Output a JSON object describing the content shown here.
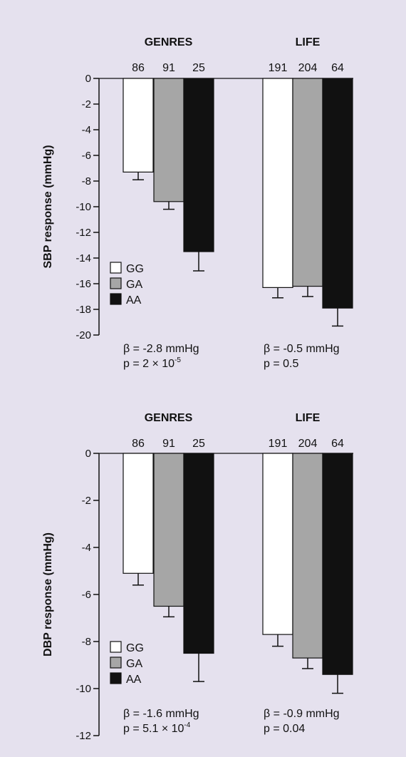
{
  "chart_data": [
    {
      "type": "bar",
      "ylabel": "SBP response (mmHg)",
      "ylim": [
        -20,
        0
      ],
      "yticks": [
        0,
        -2,
        -4,
        -6,
        -8,
        -10,
        -12,
        -14,
        -16,
        -18,
        -20
      ],
      "legend": {
        "placement": "bottom-left",
        "entries": [
          "GG",
          "GA",
          "AA"
        ]
      },
      "series_colors": [
        "#ffffff",
        "#a6a6a6",
        "#111111"
      ],
      "groups": [
        {
          "title": "GENRES",
          "counts": [
            "86",
            "91",
            "25"
          ],
          "values": [
            -7.3,
            -9.6,
            -13.5
          ],
          "errors": [
            0.6,
            0.6,
            1.5
          ],
          "stat_beta": "β = -2.8 mmHg",
          "stat_p_prefix": "p = 2 × 10",
          "stat_p_exp": "-5"
        },
        {
          "title": "LIFE",
          "counts": [
            "191",
            "204",
            "64"
          ],
          "values": [
            -16.3,
            -16.2,
            -17.9
          ],
          "errors": [
            0.8,
            0.8,
            1.4
          ],
          "stat_beta": "β = -0.5 mmHg",
          "stat_p_prefix": "p = 0.5",
          "stat_p_exp": ""
        }
      ]
    },
    {
      "type": "bar",
      "ylabel": "DBP response (mmHg)",
      "ylim": [
        -12,
        0
      ],
      "yticks": [
        0,
        -2,
        -4,
        -6,
        -8,
        -10,
        -12
      ],
      "legend": {
        "placement": "bottom-left",
        "entries": [
          "GG",
          "GA",
          "AA"
        ]
      },
      "series_colors": [
        "#ffffff",
        "#a6a6a6",
        "#111111"
      ],
      "groups": [
        {
          "title": "GENRES",
          "counts": [
            "86",
            "91",
            "25"
          ],
          "values": [
            -5.1,
            -6.5,
            -8.5
          ],
          "errors": [
            0.5,
            0.45,
            1.2
          ],
          "stat_beta": "β = -1.6 mmHg",
          "stat_p_prefix": "p = 5.1 × 10",
          "stat_p_exp": "-4"
        },
        {
          "title": "LIFE",
          "counts": [
            "191",
            "204",
            "64"
          ],
          "values": [
            -7.7,
            -8.7,
            -9.4
          ],
          "errors": [
            0.5,
            0.45,
            0.8
          ],
          "stat_beta": "β = -0.9 mmHg",
          "stat_p_prefix": "p = 0.04",
          "stat_p_exp": ""
        }
      ]
    }
  ]
}
